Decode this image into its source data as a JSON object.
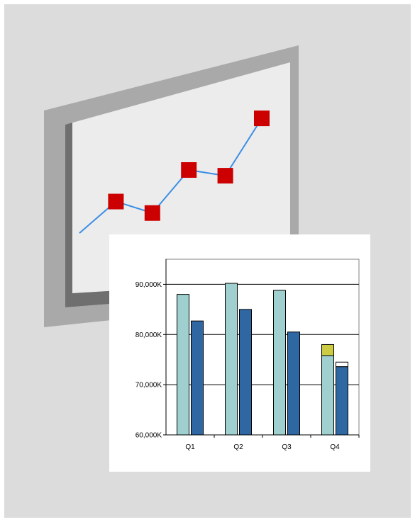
{
  "colors": {
    "background": "#dcdcdc",
    "frame_outer": "#a9a9a9",
    "frame_inner": "#6f6f6f",
    "screen": "#ececec",
    "line": "#3b8ee6",
    "marker": "#cc0000",
    "bar_light": "#9fcfcf",
    "bar_dark": "#2f67a2",
    "bar_highlight": "#cccc44"
  },
  "chart_data": [
    {
      "type": "line",
      "values": [
        1.8,
        2.9,
        2.5,
        4.0,
        3.8,
        5.8
      ],
      "ylim": [
        0,
        7
      ],
      "marker_start_index": 1,
      "title": "",
      "xlabel": "",
      "ylabel": ""
    },
    {
      "type": "bar",
      "categories": [
        "Q1",
        "Q2",
        "Q3",
        "Q4"
      ],
      "series": [
        {
          "values": [
            88000,
            90200,
            88800,
            75800
          ],
          "stack_top": [
            null,
            null,
            null,
            78000
          ]
        },
        {
          "values": [
            82700,
            85000,
            80500,
            73600
          ],
          "stack_top": [
            null,
            null,
            null,
            74500
          ]
        }
      ],
      "ylim": [
        60000,
        95000
      ],
      "yticks": [
        60000,
        70000,
        80000,
        90000
      ],
      "ytick_labels": [
        "60,000K",
        "70,000K",
        "80,000K",
        "90,000K"
      ],
      "grid": true,
      "title": "",
      "xlabel": "",
      "ylabel": ""
    }
  ]
}
